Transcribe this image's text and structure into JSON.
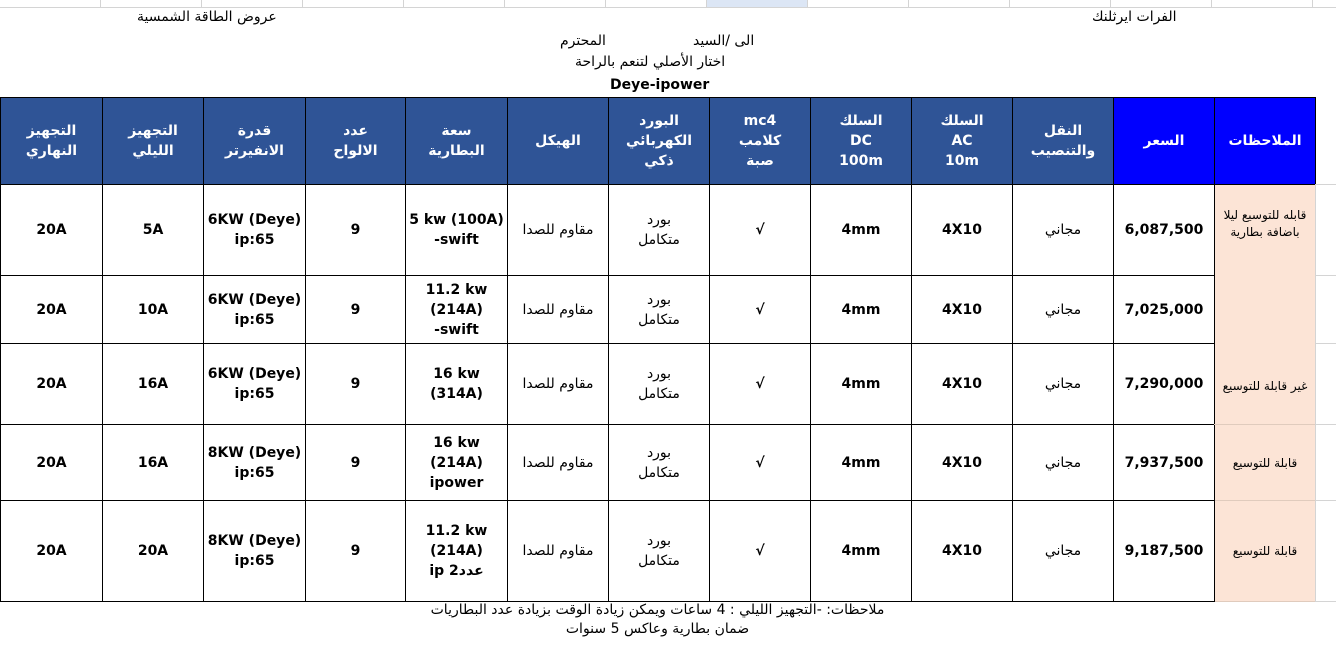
{
  "header": {
    "company": "الفرات ايرثلنك",
    "offer_title": "عروض الطاقة الشمسية",
    "to_mr": "الى /السيد",
    "respected": "المحترم",
    "slogan": "اختار الأصلي لتنعم بالراحة",
    "brand": "Deye-ipower"
  },
  "columns": [
    "التجهيز\nالنهاري",
    "التجهيز\nالليلي",
    "قدرة\nالانفيرتر",
    "عدد\nالالواح",
    "سعة\nالبطارية",
    "الهيكل",
    "البورد\nالكهربائي\nذكي",
    "mc4\nكلامب\nصبة",
    "السلك\nDC\n100m",
    "السلك\nAC\n10m",
    "النقل\nوالتنصيب",
    "السعر",
    "الملاحظات"
  ],
  "rows": [
    {
      "day": "20A",
      "night": "5A",
      "inverter": "6KW (Deye)\nip:65",
      "panels": "9",
      "battery": "5 kw (100A)\n-swift",
      "frame": "مقاوم للصدا",
      "board": "بورد\nمتكامل",
      "mc4": "√",
      "dc": "4mm",
      "ac": "4X10",
      "install": "مجاني",
      "price": "6,087,500"
    },
    {
      "day": "20A",
      "night": "10A",
      "inverter": "6KW (Deye)\nip:65",
      "panels": "9",
      "battery": "11.2 kw\n(214A)\n-swift",
      "frame": "مقاوم للصدا",
      "board": "بورد\nمتكامل",
      "mc4": "√",
      "dc": "4mm",
      "ac": "4X10",
      "install": "مجاني",
      "price": "7,025,000"
    },
    {
      "day": "20A",
      "night": "16A",
      "inverter": "6KW (Deye)\nip:65",
      "panels": "9",
      "battery": "16 kw\n(314A)",
      "frame": "مقاوم للصدا",
      "board": "بورد\nمتكامل",
      "mc4": "√",
      "dc": "4mm",
      "ac": "4X10",
      "install": "مجاني",
      "price": "7,290,000"
    },
    {
      "day": "20A",
      "night": "16A",
      "inverter": "8KW (Deye)\nip:65",
      "panels": "9",
      "battery": "16 kw\n(214A)\nipower",
      "frame": "مقاوم للصدا",
      "board": "بورد\nمتكامل",
      "mc4": "√",
      "dc": "4mm",
      "ac": "4X10",
      "install": "مجاني",
      "price": "7,937,500"
    },
    {
      "day": "20A",
      "night": "20A",
      "inverter": "8KW (Deye)\nip:65",
      "panels": "9",
      "battery": "11.2 kw\n(214A)\nip عدد2",
      "frame": "مقاوم للصدا",
      "board": "بورد\nمتكامل",
      "mc4": "√",
      "dc": "4mm",
      "ac": "4X10",
      "install": "مجاني",
      "price": "9,187,500"
    }
  ],
  "notes": [
    "قابله للتوسيع ليلا\nباضافة بطارية",
    "غير قابلة للتوسيع",
    "قابلة للتوسيع",
    "قابلة للتوسيع"
  ],
  "footer": {
    "line1": "ملاحظات: -التجهيز الليلي : 4 ساعات ويمكن زيادة الوقت بزيادة عدد البطاريات",
    "line2": "ضمان بطارية وعاكس 5 سنوات"
  },
  "colors": {
    "header": "#2f5496",
    "highlight_header": "#0000ff",
    "notes_bg": "#fce4d6"
  }
}
